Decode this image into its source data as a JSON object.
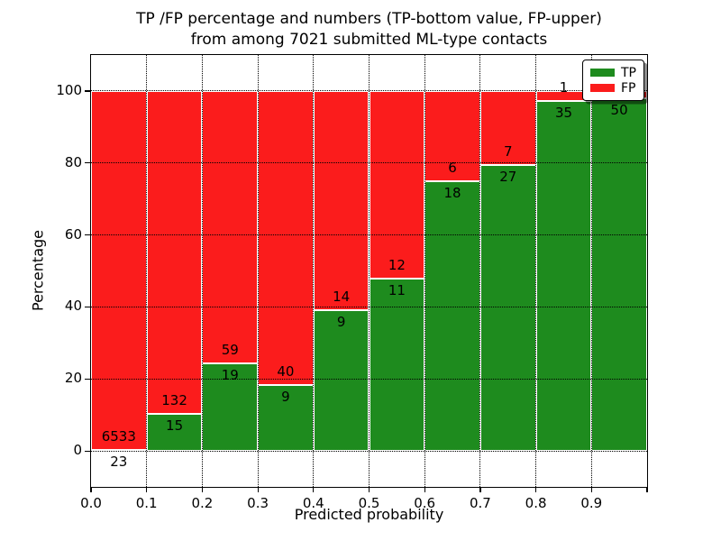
{
  "title": {
    "line1": "TP /FP percentage and numbers (TP-bottom value, FP-upper)",
    "line2": "from among 7021 submitted ML-type contacts"
  },
  "chart_data": {
    "type": "bar",
    "stacked": true,
    "normalized": "each bin stacked to 100%",
    "title_lines": [
      "TP /FP percentage and numbers (TP-bottom value, FP-upper)",
      "from among 7021 submitted ML-type contacts"
    ],
    "xlabel": "Predicted probability",
    "ylabel": "Percentage",
    "xlim": [
      0.0,
      1.0
    ],
    "ylim": [
      -10,
      110
    ],
    "x_ticks": [
      0.0,
      0.1,
      0.2,
      0.3,
      0.4,
      0.5,
      0.6,
      0.7,
      0.8,
      0.9
    ],
    "x_tick_labels": [
      "0.0",
      "0.1",
      "0.2",
      "0.3",
      "0.4",
      "0.5",
      "0.6",
      "0.7",
      "0.8",
      "0.9"
    ],
    "y_ticks": [
      0,
      20,
      40,
      60,
      80,
      100
    ],
    "y_tick_labels": [
      "0",
      "20",
      "40",
      "60",
      "80",
      "100"
    ],
    "grid": {
      "visible": true,
      "style": "dotted",
      "color": "#000000"
    },
    "total_contacts_in_title": 7021,
    "series_colors": {
      "TP": "#1e8b1e",
      "FP": "#fb1c1c"
    },
    "bar_edge_color": "#ffffff",
    "legend": {
      "position": "upper-right",
      "entries": [
        {
          "label": "TP",
          "color": "#1e8b1e"
        },
        {
          "label": "FP",
          "color": "#fb1c1c"
        }
      ]
    },
    "bins": [
      {
        "x_range": [
          0.0,
          0.1
        ],
        "tp_count": 23,
        "fp_count": 6533,
        "tp_label": "23",
        "fp_label": "6533",
        "tp_percent": 0.35
      },
      {
        "x_range": [
          0.1,
          0.2
        ],
        "tp_count": 15,
        "fp_count": 132,
        "tp_label": "15",
        "fp_label": "132",
        "tp_percent": 10.2
      },
      {
        "x_range": [
          0.2,
          0.3
        ],
        "tp_count": 19,
        "fp_count": 59,
        "tp_label": "19",
        "fp_label": "59",
        "tp_percent": 24.4
      },
      {
        "x_range": [
          0.3,
          0.4
        ],
        "tp_count": 9,
        "fp_count": 40,
        "tp_label": "9",
        "fp_label": "40",
        "tp_percent": 18.4
      },
      {
        "x_range": [
          0.4,
          0.5
        ],
        "tp_count": 9,
        "fp_count": 14,
        "tp_label": "9",
        "fp_label": "14",
        "tp_percent": 39.1
      },
      {
        "x_range": [
          0.5,
          0.6
        ],
        "tp_count": 11,
        "fp_count": 12,
        "tp_label": "11",
        "fp_label": "12",
        "tp_percent": 47.8
      },
      {
        "x_range": [
          0.6,
          0.7
        ],
        "tp_count": 18,
        "fp_count": 6,
        "tp_label": "18",
        "fp_label": "6",
        "tp_percent": 75.0
      },
      {
        "x_range": [
          0.7,
          0.8
        ],
        "tp_count": 27,
        "fp_count": 7,
        "tp_label": "27",
        "fp_label": "7",
        "tp_percent": 79.4
      },
      {
        "x_range": [
          0.8,
          0.9
        ],
        "tp_count": 35,
        "fp_count": 1,
        "tp_label": "35",
        "fp_label": "1",
        "tp_percent": 97.2
      },
      {
        "x_range": [
          0.9,
          1.0
        ],
        "tp_count": 50,
        "fp_count": 1,
        "tp_label": "50",
        "fp_label": "1",
        "tp_percent": 98.0
      }
    ]
  }
}
